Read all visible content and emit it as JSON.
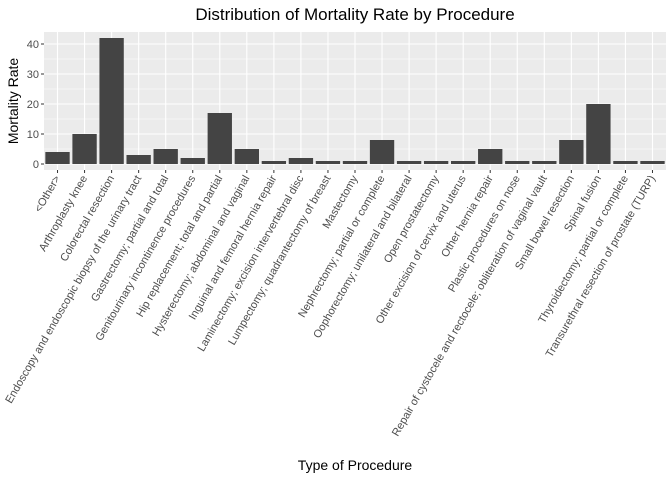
{
  "chart_data": {
    "type": "bar",
    "title": "Distribution of Mortality Rate by Procedure",
    "xlabel": "Type of Procedure",
    "ylabel": "Mortality Rate",
    "ylim": [
      -2,
      44
    ],
    "yticks": [
      0,
      10,
      20,
      30,
      40
    ],
    "grid": true,
    "colors": {
      "panel": "#ebebeb",
      "grid_major": "#ffffff",
      "bar": "#444444",
      "tick_text": "#4d4d4d"
    },
    "categories": [
      "<Other>",
      "Arthroplasty knee",
      "Colorectal resection",
      "Endoscopy and endoscopic biopsy of the urinary tract",
      "Gastrectomy; partial and total",
      "Genitourinary incontinence procedures",
      "Hip replacement; total and partial",
      "Hysterectomy; abdominal and vaginal",
      "Inguinal and femoral hernia repair",
      "Laminectomy; excision intervertebral disc",
      "Lumpectomy; quadrantectomy of breast",
      "Mastectomy",
      "Nephrectomy; partial or complete",
      "Oophorectomy; unilateral and bilateral",
      "Open prostatectomy",
      "Other excision of cervix and uterus",
      "Other hernia repair",
      "Plastic procedures on nose",
      "Repair of cystocele and rectocele; obliteration of vaginal vault",
      "Small bowel resection",
      "Spinal fusion",
      "Thyroidectomy; partial or complete",
      "Transurethral resection of prostate (TURP)"
    ],
    "values": [
      4,
      10,
      42,
      3,
      5,
      2,
      17,
      5,
      1,
      2,
      1,
      1,
      8,
      1,
      1,
      1,
      5,
      1,
      1,
      8,
      20,
      1,
      1
    ]
  }
}
